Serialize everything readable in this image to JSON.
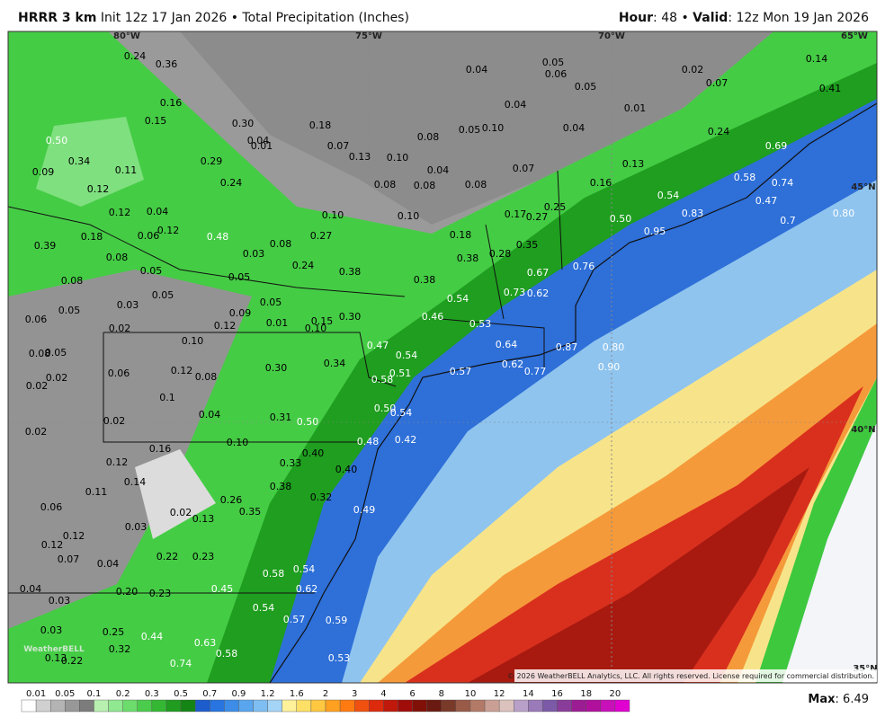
{
  "header": {
    "model": "HRRR 3 km",
    "info": "Init 12z 17 Jan 2026 • Total Precipitation (Inches)",
    "hour_key": "Hour",
    "hour_value": ": 48 • ",
    "valid_key": "Valid",
    "valid_value": ": 12z Mon 19 Jan 2026"
  },
  "map": {
    "longitudes": [
      "80°W",
      "75°W",
      "70°W",
      "65°W"
    ],
    "latitudes": [
      "45°N",
      "40°N",
      "35°N"
    ],
    "watermark": "WeatherBELL",
    "copyright": "© 2026 WeatherBELL Analytics, LLC. All rights reserved. License required for commercial distribution.",
    "point_labels": [
      "0.24",
      "0.36",
      "0.16",
      "0.15",
      "0.30",
      "0.18",
      "0.04",
      "0.01",
      "0.50",
      "0.34",
      "0.09",
      "0.11",
      "0.29",
      "0.07",
      "0.13",
      "0.10",
      "0.08",
      "0.05",
      "0.10",
      "0.04",
      "0.05",
      "0.06",
      "0.05",
      "0.04",
      "0.04",
      "0.01",
      "0.02",
      "0.07",
      "0.14",
      "0.41",
      "0.24",
      "0.13",
      "0.07",
      "0.04",
      "0.08",
      "0.08",
      "0.08",
      "0.12",
      "0.24",
      "0.12",
      "0.04",
      "0.12",
      "0.06",
      "0.48",
      "0.10",
      "0.10",
      "0.27",
      "0.08",
      "0.03",
      "0.18",
      "0.39",
      "0.08",
      "0.05",
      "0.08",
      "0.05",
      "0.03",
      "0.05",
      "0.24",
      "0.38",
      "0.18",
      "0.38",
      "0.38",
      "0.16",
      "0.17",
      "0.27",
      "0.25",
      "0.54",
      "0.50",
      "0.58",
      "0.74",
      "0.47",
      "0.83",
      "0.95",
      "0.7",
      "0.80",
      "0.69",
      "0.35",
      "0.28",
      "0.76",
      "0.67",
      "0.54",
      "0.73",
      "0.62",
      "0.05",
      "0.06",
      "0.09",
      "0.05",
      "0.01",
      "0.15",
      "0.10",
      "0.30",
      "0.46",
      "0.53",
      "0.12",
      "0.02",
      "0.10",
      "0.05",
      "0.08",
      "0.47",
      "0.54",
      "0.64",
      "0.87",
      "0.80",
      "0.06",
      "0.12",
      "0.08",
      "0.30",
      "0.34",
      "0.51",
      "0.58",
      "0.57",
      "0.62",
      "0.77",
      "0.90",
      "0.02",
      "0.02",
      "0.1",
      "0.04",
      "0.31",
      "0.50",
      "0.50",
      "0.54",
      "0.02",
      "0.02",
      "0.16",
      "0.10",
      "0.40",
      "0.48",
      "0.42",
      "0.12",
      "0.33",
      "0.40",
      "0.14",
      "0.11",
      "0.38",
      "0.32",
      "0.26",
      "0.35",
      "0.49",
      "0.06",
      "0.02",
      "0.13",
      "0.03",
      "0.12",
      "0.12",
      "0.07",
      "0.04",
      "0.22",
      "0.23",
      "0.58",
      "0.54",
      "0.04",
      "0.20",
      "0.23",
      "0.45",
      "0.62",
      "0.03",
      "0.54",
      "0.57",
      "0.59",
      "0.03",
      "0.25",
      "0.44",
      "0.63",
      "0.32",
      "0.58",
      "0.13",
      "0.22",
      "0.74",
      "0.53"
    ]
  },
  "legend": {
    "ticks": [
      "0.01",
      "0.05",
      "0.1",
      "0.2",
      "0.3",
      "0.5",
      "0.7",
      "0.9",
      "1.2",
      "1.6",
      "2",
      "3",
      "4",
      "6",
      "8",
      "10",
      "12",
      "14",
      "16",
      "18",
      "20"
    ],
    "max_key": "Max",
    "max_value": ": 6.49"
  }
}
